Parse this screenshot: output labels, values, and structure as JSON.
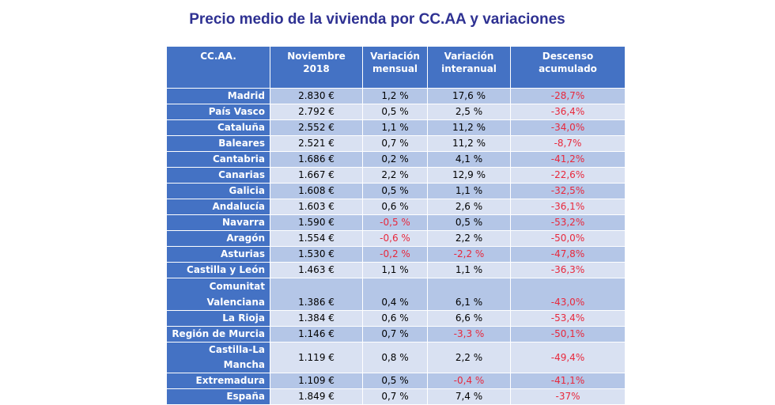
{
  "title": "Precio medio de la vivienda por CC.AA y variaciones",
  "table": {
    "headers": [
      [
        "CC.AA.",
        ""
      ],
      [
        "Noviembre",
        "2018"
      ],
      [
        "Variación",
        "mensual"
      ],
      [
        "Variación",
        "interanual"
      ],
      [
        "Descenso",
        "acumulado"
      ]
    ],
    "rows": [
      [
        "Madrid",
        "2.830 €",
        "1,2 %",
        "17,6 %",
        "-28,7%"
      ],
      [
        "País Vasco",
        "2.792 €",
        "0,5 %",
        "2,5 %",
        "-36,4%"
      ],
      [
        "Cataluña",
        "2.552 €",
        "1,1 %",
        "11,2 %",
        "-34,0%"
      ],
      [
        "Baleares",
        "2.521 €",
        "0,7 %",
        "11,2 %",
        "-8,7%"
      ],
      [
        "Cantabria",
        "1.686 €",
        "0,2 %",
        "4,1 %",
        "-41,2%"
      ],
      [
        "Canarias",
        "1.667 €",
        "2,2 %",
        "12,9 %",
        "-22,6%"
      ],
      [
        "Galicia",
        "1.608 €",
        "0,5 %",
        "1,1 %",
        "-32,5%"
      ],
      [
        "Andalucía",
        "1.603 €",
        "0,6 %",
        "2,6 %",
        "-36,1%"
      ],
      [
        "Navarra",
        "1.590 €",
        "-0,5 %",
        "0,5 %",
        "-53,2%"
      ],
      [
        "Aragón",
        "1.554 €",
        "-0,6 %",
        "2,2 %",
        "-50,0%"
      ],
      [
        "Asturias",
        "1.530 €",
        "-0,2 %",
        "-2,2 %",
        "-47,8%"
      ],
      [
        "Castilla y León",
        "1.463 €",
        "1,1 %",
        "1,1 %",
        "-36,3%"
      ],
      [
        "Comunitat Valenciana",
        "1.386 €",
        "0,4 %",
        "6,1 %",
        "-43,0%"
      ],
      [
        "La Rioja",
        "1.384 €",
        "0,6 %",
        "6,6 %",
        "-53,4%"
      ],
      [
        "Región de Murcia",
        "1.146 €",
        "0,7 %",
        "-3,3 %",
        "-50,1%"
      ],
      [
        "Castilla-La Mancha",
        "1.119 €",
        "0,8 %",
        "2,2 %",
        "-49,4%"
      ],
      [
        "Extremadura",
        "1.109 €",
        "0,5 %",
        "-0,4 %",
        "-41,1%"
      ],
      [
        "España",
        "1.849 €",
        "0,7 %",
        "7,4 %",
        "-37%"
      ]
    ]
  },
  "colors": {
    "header": "#4472c4",
    "row_dark": "#b4c6e7",
    "row_light": "#d9e1f2",
    "negative": "#e8283c",
    "title": "#2e3192"
  }
}
